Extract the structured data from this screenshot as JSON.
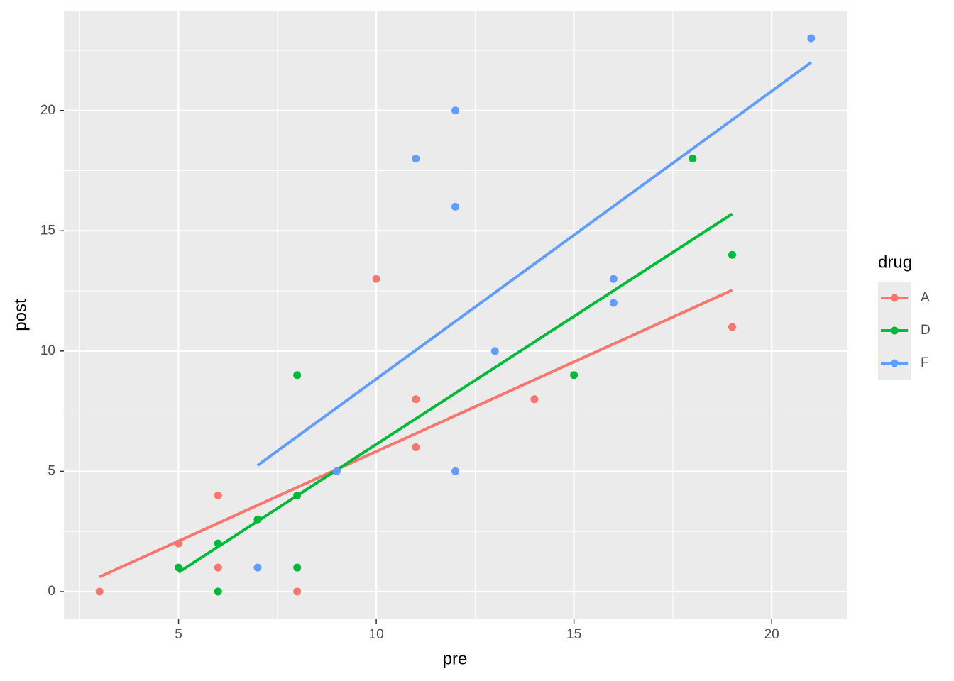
{
  "chart_data": {
    "type": "scatter",
    "x_label": "pre",
    "y_label": "post",
    "xlim": [
      2.1,
      21.9
    ],
    "ylim": [
      -1.15,
      24.15
    ],
    "xticks": [
      5,
      10,
      15,
      20
    ],
    "yticks": [
      0,
      5,
      10,
      15,
      20
    ],
    "x_minor_ticks": [
      2.5,
      7.5,
      12.5,
      17.5
    ],
    "y_minor_ticks": [
      2.5,
      7.5,
      12.5,
      17.5,
      22.5
    ],
    "grid": true,
    "legend_title": "drug",
    "legend": "right",
    "series": [
      {
        "name": "A",
        "color": "#F8766D",
        "x": [
          3,
          5,
          6,
          6,
          8,
          10,
          11,
          11,
          14,
          19
        ],
        "values": [
          0,
          2,
          4,
          1,
          0,
          13,
          8,
          6,
          8,
          11
        ],
        "fit": {
          "x": [
            3,
            19
          ],
          "values": [
            0.61,
            12.53
          ]
        }
      },
      {
        "name": "D",
        "color": "#00BA38",
        "x": [
          5,
          6,
          6,
          7,
          8,
          8,
          8,
          15,
          18,
          19
        ],
        "values": [
          1,
          2,
          0,
          3,
          4,
          9,
          1,
          9,
          18,
          14
        ],
        "fit": {
          "x": [
            5,
            19
          ],
          "values": [
            0.8,
            15.7
          ]
        }
      },
      {
        "name": "F",
        "color": "#619CFF",
        "x": [
          7,
          9,
          11,
          12,
          12,
          12,
          13,
          16,
          16,
          21
        ],
        "values": [
          1,
          5,
          18,
          20,
          16,
          5,
          10,
          13,
          12,
          23
        ],
        "fit": {
          "x": [
            7,
            21
          ],
          "values": [
            5.25,
            22
          ]
        }
      }
    ]
  }
}
